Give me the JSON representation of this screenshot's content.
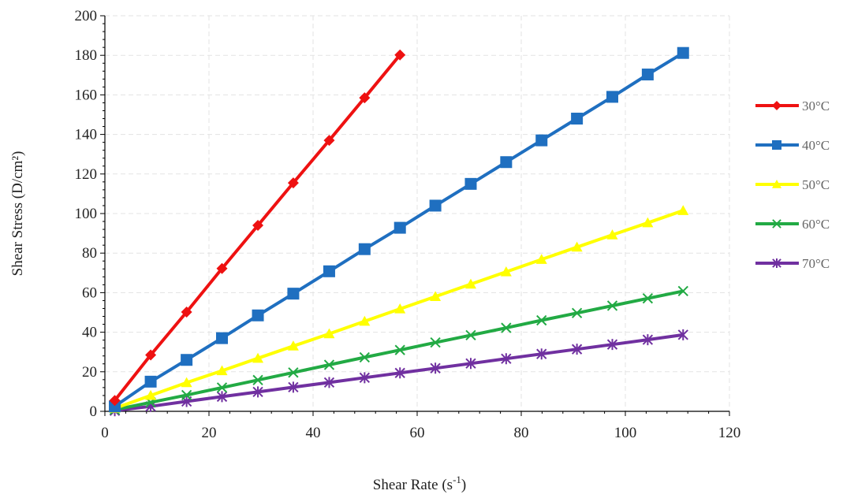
{
  "chart_data": {
    "type": "line",
    "title": "",
    "xlabel": "Shear Rate (s",
    "xlabel_sup": "-1",
    "xlabel_suffix": ")",
    "ylabel": "Shear Stress (D/cm²)",
    "xlim": [
      0,
      120
    ],
    "ylim": [
      0,
      200
    ],
    "x_ticks": [
      "0",
      "20",
      "40",
      "60",
      "80",
      "100",
      "120"
    ],
    "y_ticks": [
      "0",
      "20",
      "40",
      "60",
      "80",
      "100",
      "120",
      "140",
      "160",
      "180",
      "200"
    ],
    "grid": "dashed-light",
    "legend_position": "right",
    "series": [
      {
        "name": "30°C",
        "color": "#ee1111",
        "marker": "diamond",
        "x": [
          1.9,
          8.8,
          15.7,
          22.5,
          29.4,
          36.2,
          43.1,
          49.9,
          56.7
        ],
        "y": [
          5.5,
          28.5,
          50.2,
          72.2,
          94.0,
          115.5,
          137.0,
          158.5,
          180.2
        ]
      },
      {
        "name": "40°C",
        "color": "#1f6fc0",
        "marker": "square",
        "x": [
          1.9,
          8.8,
          15.7,
          22.5,
          29.4,
          36.2,
          43.1,
          49.9,
          56.7,
          63.5,
          70.3,
          77.1,
          83.9,
          90.7,
          97.5,
          104.3,
          111.1
        ],
        "y": [
          2.5,
          15.0,
          26.0,
          37.0,
          48.5,
          59.5,
          70.8,
          82.0,
          92.8,
          104.0,
          115.0,
          126.0,
          137.0,
          148.0,
          159.0,
          170.3,
          181.2
        ]
      },
      {
        "name": "50°C",
        "color": "#ffff00",
        "marker": "triangle",
        "x": [
          1.9,
          8.8,
          15.7,
          22.5,
          29.4,
          36.2,
          43.1,
          49.9,
          56.7,
          63.5,
          70.3,
          77.1,
          83.9,
          90.7,
          97.5,
          104.3,
          111.1
        ],
        "y": [
          1.5,
          8.0,
          14.5,
          20.5,
          26.8,
          33.0,
          39.2,
          45.5,
          51.8,
          58.0,
          64.3,
          70.5,
          76.8,
          83.0,
          89.2,
          95.3,
          101.5
        ]
      },
      {
        "name": "60°C",
        "color": "#22aa44",
        "marker": "x",
        "x": [
          1.9,
          8.8,
          15.7,
          22.5,
          29.4,
          36.2,
          43.1,
          49.9,
          56.7,
          63.5,
          70.3,
          77.1,
          83.9,
          90.7,
          97.5,
          104.3,
          111.1
        ],
        "y": [
          0.8,
          4.5,
          8.2,
          12.0,
          15.8,
          19.6,
          23.5,
          27.3,
          31.0,
          34.8,
          38.5,
          42.2,
          46.0,
          49.7,
          53.4,
          57.1,
          60.8
        ]
      },
      {
        "name": "70°C",
        "color": "#7030a0",
        "marker": "asterisk",
        "x": [
          1.9,
          8.8,
          15.7,
          22.5,
          29.4,
          36.2,
          43.1,
          49.9,
          56.7,
          63.5,
          70.3,
          77.1,
          83.9,
          90.7,
          97.5,
          104.3,
          111.1
        ],
        "y": [
          0.3,
          2.5,
          5.0,
          7.4,
          9.8,
          12.2,
          14.6,
          17.0,
          19.4,
          21.8,
          24.2,
          26.6,
          29.0,
          31.4,
          33.8,
          36.2,
          38.7
        ]
      }
    ]
  }
}
